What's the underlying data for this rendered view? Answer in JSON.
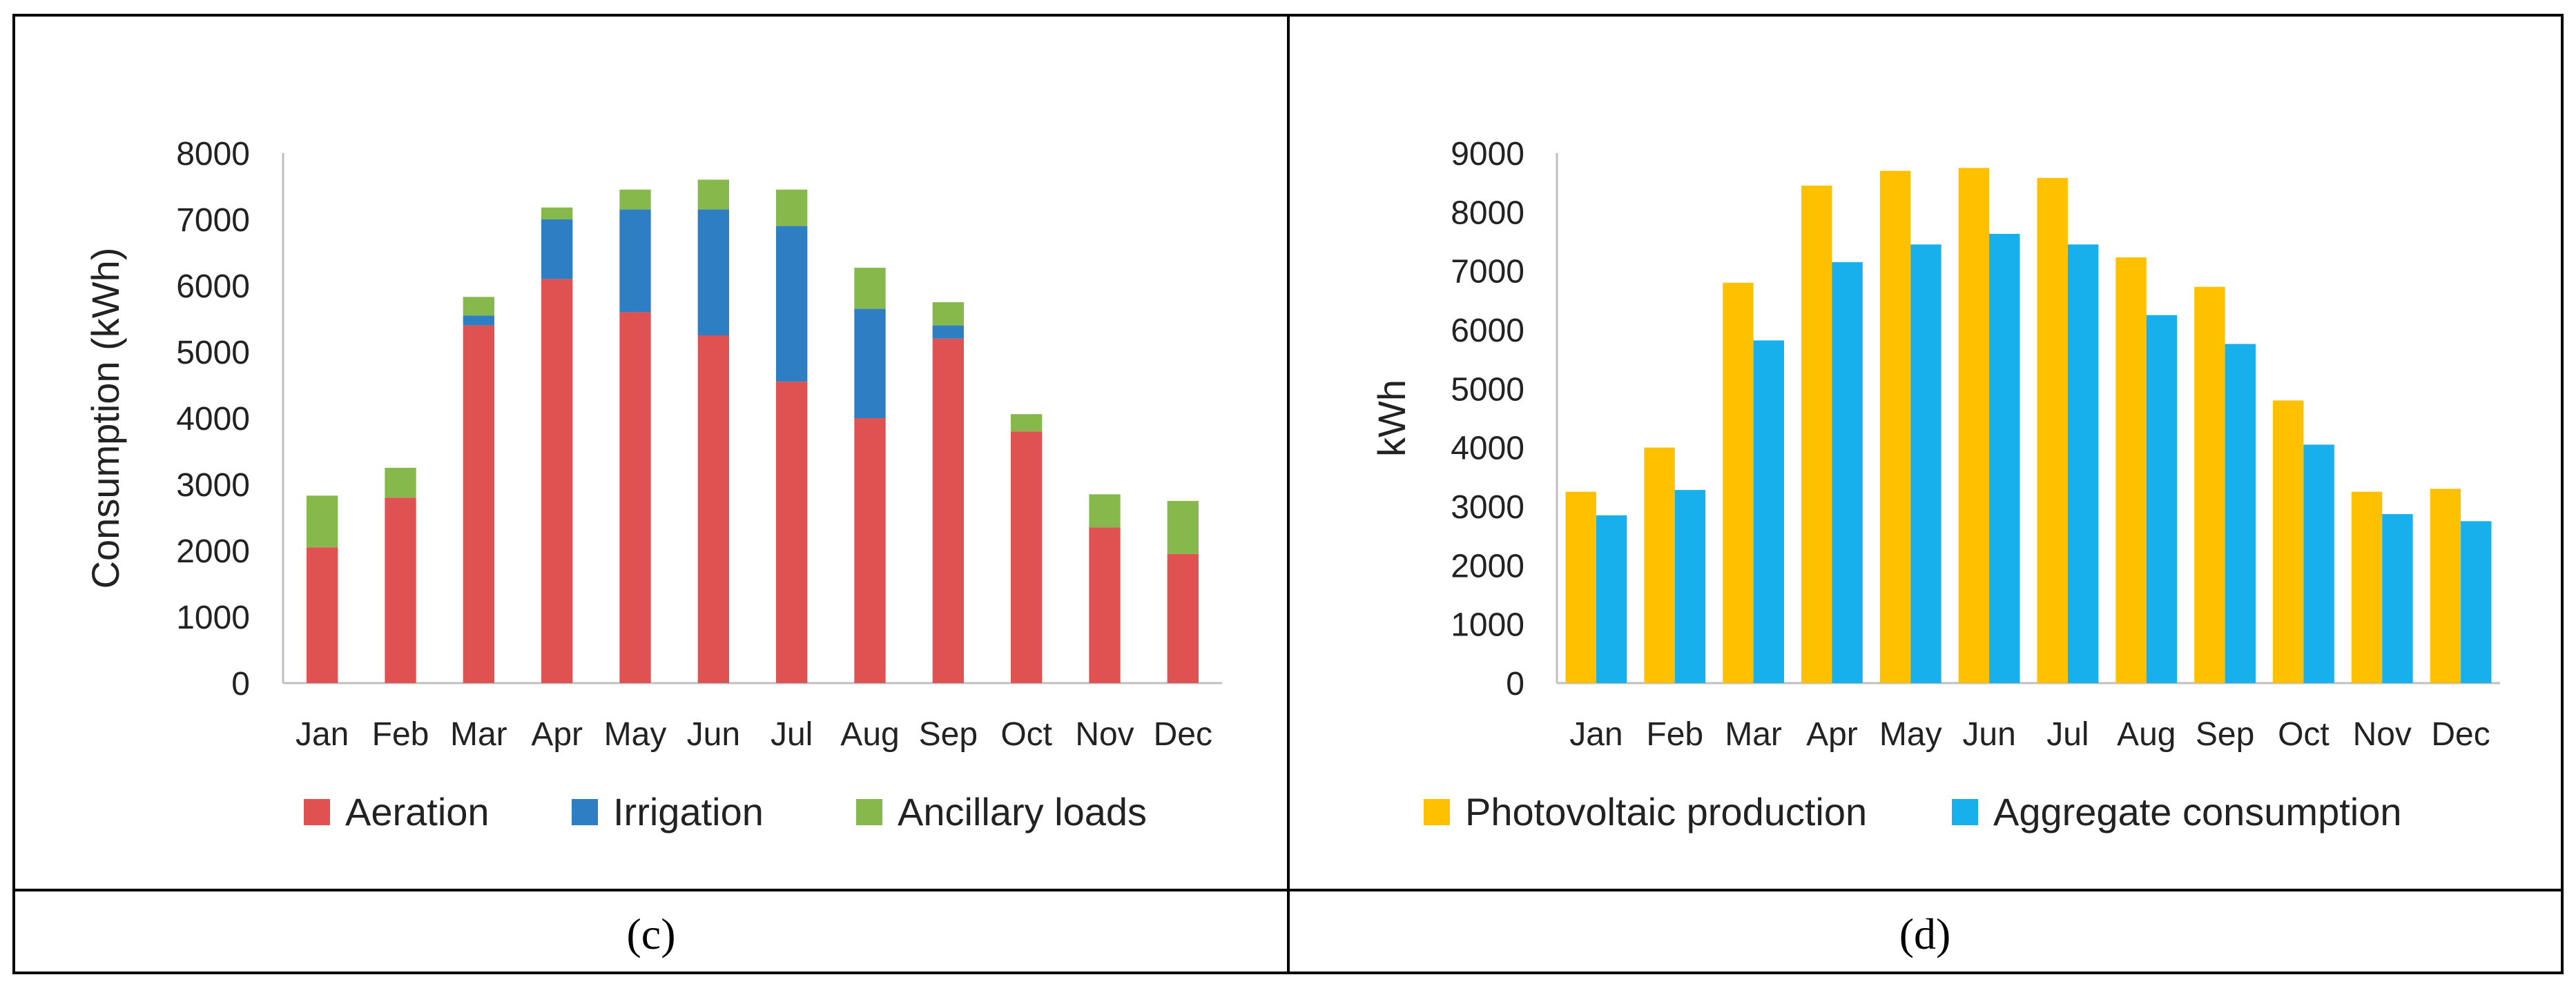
{
  "colors": {
    "aeration": "#E05252",
    "irrigation": "#2E7EC3",
    "ancillary": "#86B84C",
    "pv": "#FFC000",
    "consumption": "#18B0EC",
    "axis": "#bfbfbf",
    "border": "#000000"
  },
  "captions": {
    "c": "(c)",
    "d": "(d)"
  },
  "chart_data": [
    {
      "type": "bar",
      "stacked": true,
      "panel": "c",
      "title": "",
      "xlabel": "",
      "ylabel": "Consumption (kWh)",
      "ylim": [
        0,
        8000
      ],
      "yticks": [
        0,
        1000,
        2000,
        3000,
        4000,
        5000,
        6000,
        7000,
        8000
      ],
      "categories": [
        "Jan",
        "Feb",
        "Mar",
        "Apr",
        "May",
        "Jun",
        "Jul",
        "Aug",
        "Sep",
        "Oct",
        "Nov",
        "Dec"
      ],
      "legend_position": "bottom",
      "series": [
        {
          "name": "Aeration",
          "color_key": "aeration",
          "values": [
            2050,
            2800,
            5400,
            6100,
            5600,
            5250,
            4550,
            4000,
            5200,
            3800,
            2350,
            1950
          ]
        },
        {
          "name": "Irrigation",
          "color_key": "irrigation",
          "values": [
            0,
            0,
            150,
            900,
            1550,
            1900,
            2350,
            1650,
            200,
            0,
            0,
            0
          ]
        },
        {
          "name": "Ancillary loads",
          "color_key": "ancillary",
          "values": [
            780,
            450,
            280,
            180,
            300,
            450,
            550,
            620,
            350,
            260,
            500,
            800
          ]
        }
      ]
    },
    {
      "type": "bar",
      "stacked": false,
      "panel": "d",
      "title": "",
      "xlabel": "",
      "ylabel": "kWh",
      "ylim": [
        0,
        9000
      ],
      "yticks": [
        0,
        1000,
        2000,
        3000,
        4000,
        5000,
        6000,
        7000,
        8000,
        9000
      ],
      "categories": [
        "Jan",
        "Feb",
        "Mar",
        "Apr",
        "May",
        "Jun",
        "Jul",
        "Aug",
        "Sep",
        "Oct",
        "Nov",
        "Dec"
      ],
      "legend_position": "bottom",
      "series": [
        {
          "name": "Photovoltaic production",
          "color_key": "pv",
          "values": [
            3250,
            4000,
            6800,
            8450,
            8700,
            8750,
            8580,
            7230,
            6730,
            4800,
            3250,
            3300
          ]
        },
        {
          "name": "Aggregate consumption",
          "color_key": "consumption",
          "values": [
            2850,
            3280,
            5820,
            7150,
            7450,
            7630,
            7450,
            6250,
            5760,
            4050,
            2870,
            2750
          ]
        }
      ]
    }
  ]
}
